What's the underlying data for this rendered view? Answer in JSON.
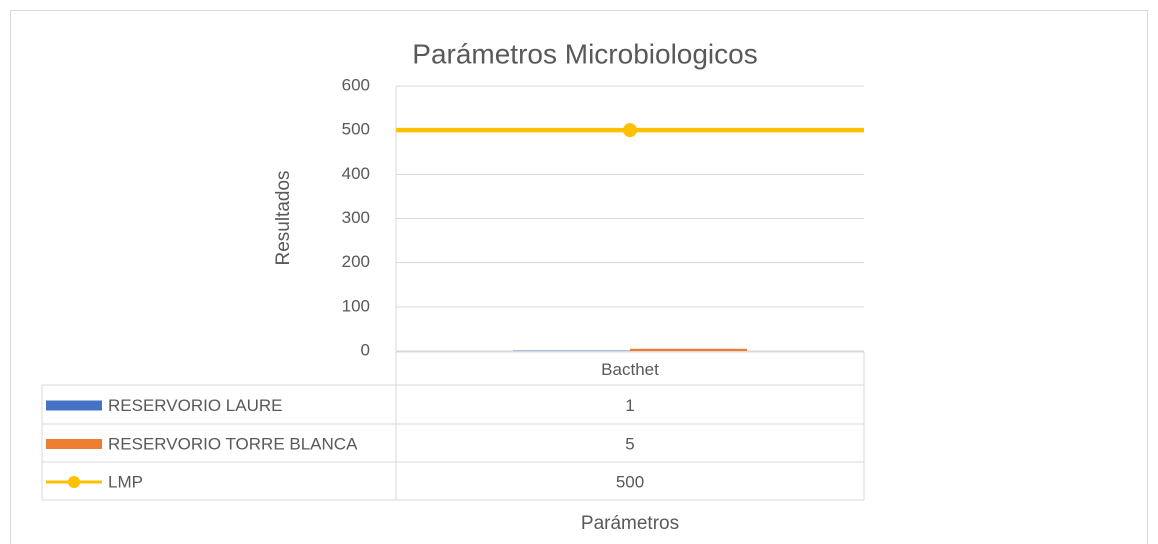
{
  "chart_data": {
    "type": "bar",
    "title": "Parámetros Microbiologicos",
    "y_label": "Resultados",
    "x_label": "Parámetros",
    "categories": [
      "Bacthet"
    ],
    "series": [
      {
        "name": "RESERVORIO LAURE",
        "color": "#4472c4",
        "type": "bar",
        "values": [
          1
        ]
      },
      {
        "name": "RESERVORIO TORRE BLANCA",
        "color": "#ed7d31",
        "type": "bar",
        "values": [
          5
        ]
      },
      {
        "name": "LMP",
        "color": "#ffc000",
        "type": "line",
        "values": [
          500
        ]
      }
    ],
    "ylim": [
      0,
      600
    ],
    "yticks": [
      0,
      100,
      200,
      300,
      400,
      500,
      600
    ],
    "grid": true
  }
}
